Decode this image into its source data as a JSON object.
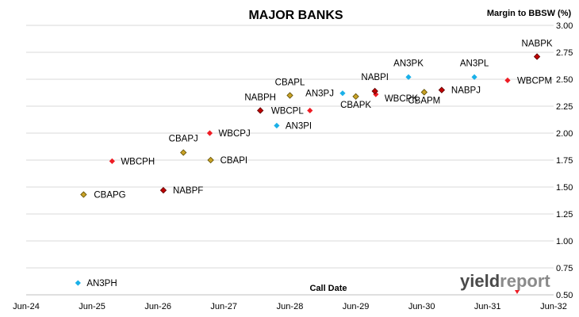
{
  "chart_data": {
    "type": "scatter",
    "title": "MAJOR BANKS",
    "xlabel": "Call Date",
    "ylabel": "Margin to BBSW (%)",
    "xlim": [
      "2024-06-01",
      "2032-06-01"
    ],
    "ylim": [
      0.5,
      3.0
    ],
    "y_ticks": [
      "0.50",
      "0.75",
      "1.00",
      "1.25",
      "1.50",
      "1.75",
      "2.00",
      "2.25",
      "2.50",
      "2.75",
      "3.00"
    ],
    "x_ticks": [
      "Jun-24",
      "Jun-25",
      "Jun-26",
      "Jun-27",
      "Jun-28",
      "Jun-29",
      "Jun-30",
      "Jun-31",
      "Jun-32"
    ],
    "grid": "horizontal",
    "y_axis_side": "right",
    "colors": {
      "CBA": "#c9a227",
      "WBC": "#ee1c24",
      "NAB": "#c00000",
      "ANZ": "#1ab0e8"
    },
    "series": [
      {
        "bank": "CBA",
        "points": [
          {
            "label": "CBAPG",
            "x": "2025-04-15",
            "y": 1.43
          },
          {
            "label": "CBAPJ",
            "x": "2026-10-20",
            "y": 1.82
          },
          {
            "label": "CBAPI",
            "x": "2027-03-20",
            "y": 1.75
          },
          {
            "label": "CBAPL",
            "x": "2028-06-01",
            "y": 2.35
          },
          {
            "label": "CBAPK",
            "x": "2029-06-01",
            "y": 2.34
          },
          {
            "label": "CBAPM",
            "x": "2030-06-15",
            "y": 2.38
          }
        ]
      },
      {
        "bank": "WBC",
        "points": [
          {
            "label": "WBCPH",
            "x": "2025-09-20",
            "y": 1.74
          },
          {
            "label": "WBCPJ",
            "x": "2027-03-15",
            "y": 2.0
          },
          {
            "label": "WBCPL",
            "x": "2028-09-20",
            "y": 2.21
          },
          {
            "label": "WBCPK",
            "x": "2029-09-20",
            "y": 2.36
          },
          {
            "label": "WBCPM",
            "x": "2031-09-20",
            "y": 2.49
          }
        ]
      },
      {
        "bank": "NAB",
        "points": [
          {
            "label": "NABPF",
            "x": "2026-07-01",
            "y": 1.47
          },
          {
            "label": "NABPH",
            "x": "2027-12-20",
            "y": 2.21
          },
          {
            "label": "NABPI",
            "x": "2029-09-15",
            "y": 2.39
          },
          {
            "label": "NABPJ",
            "x": "2030-09-20",
            "y": 2.4
          },
          {
            "label": "NABPK",
            "x": "2032-03-01",
            "y": 2.71
          }
        ]
      },
      {
        "bank": "ANZ",
        "points": [
          {
            "label": "AN3PH",
            "x": "2025-03-15",
            "y": 0.61
          },
          {
            "label": "AN3PI",
            "x": "2028-03-20",
            "y": 2.07
          },
          {
            "label": "AN3PJ",
            "x": "2029-03-20",
            "y": 2.37
          },
          {
            "label": "AN3PK",
            "x": "2030-03-20",
            "y": 2.52
          },
          {
            "label": "AN3PL",
            "x": "2031-03-20",
            "y": 2.52
          }
        ]
      }
    ],
    "annotations": {
      "logo_text_1": "yield",
      "logo_text_2": "report"
    }
  }
}
